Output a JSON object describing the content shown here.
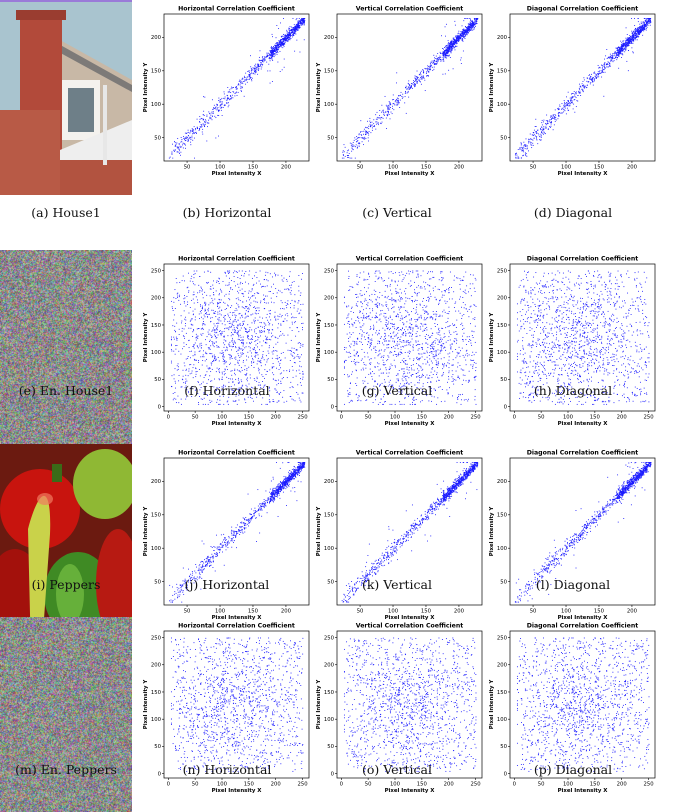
{
  "rows": [
    {
      "image": {
        "name": "house1",
        "kind": "house",
        "caption": "(a) House1"
      },
      "plots": [
        {
          "caption": "(b) Horizontal",
          "mode": "corr",
          "seed": 11,
          "chart": 0
        },
        {
          "caption": "(c) Vertical",
          "mode": "corr",
          "seed": 12,
          "chart": 1
        },
        {
          "caption": "(d) Diagonal",
          "mode": "corr",
          "seed": 13,
          "chart": 2
        }
      ]
    },
    {
      "image": {
        "name": "encrypted-house1",
        "kind": "noise",
        "caption": "(e) En. House1"
      },
      "plots": [
        {
          "caption": "(f) Horizontal",
          "mode": "rand",
          "seed": 21,
          "chart": 3
        },
        {
          "caption": "(g) Vertical",
          "mode": "rand",
          "seed": 22,
          "chart": 4
        },
        {
          "caption": "(h) Diagonal",
          "mode": "rand",
          "seed": 23,
          "chart": 5
        }
      ]
    },
    {
      "image": {
        "name": "peppers",
        "kind": "peppers",
        "caption": "(i) Peppers"
      },
      "plots": [
        {
          "caption": "(j) Horizontal",
          "mode": "corr",
          "seed": 31,
          "chart": 6
        },
        {
          "caption": "(k) Vertical",
          "mode": "corr",
          "seed": 32,
          "chart": 7
        },
        {
          "caption": "(l) Diagonal",
          "mode": "corr",
          "seed": 33,
          "chart": 8
        }
      ]
    },
    {
      "image": {
        "name": "encrypted-peppers",
        "kind": "noise",
        "caption": "(m) En. Peppers"
      },
      "plots": [
        {
          "caption": "(n) Horizontal",
          "mode": "rand",
          "seed": 41,
          "chart": 9
        },
        {
          "caption": "(o) Vertical",
          "mode": "rand",
          "seed": 42,
          "chart": 10
        },
        {
          "caption": "(p) Diagonal",
          "mode": "rand",
          "seed": 43,
          "chart": 11
        }
      ]
    }
  ],
  "chart_data": [
    {
      "type": "scatter",
      "title": "Horizontal Correlation Coefficient",
      "xlabel": "Pixel Intensity X",
      "ylabel": "Pixel Intensity Y",
      "xlim": [
        15,
        235
      ],
      "ylim": [
        15,
        235
      ],
      "xticks": [
        50,
        100,
        150,
        200
      ],
      "yticks": [
        50,
        100,
        150,
        200
      ],
      "point_color": "#1a1aff",
      "grid": false
    },
    {
      "type": "scatter",
      "title": "Vertical Correlation Coefficient",
      "xlabel": "Pixel Intensity X",
      "ylabel": "Pixel Intensity Y",
      "xlim": [
        15,
        235
      ],
      "ylim": [
        15,
        235
      ],
      "xticks": [
        50,
        100,
        150,
        200
      ],
      "yticks": [
        50,
        100,
        150,
        200
      ],
      "point_color": "#1a1aff",
      "grid": false
    },
    {
      "type": "scatter",
      "title": "Diagonal Correlation Coefficient",
      "xlabel": "Pixel Intensity X",
      "ylabel": "Pixel Intensity Y",
      "xlim": [
        15,
        235
      ],
      "ylim": [
        15,
        235
      ],
      "xticks": [
        50,
        100,
        150,
        200
      ],
      "yticks": [
        50,
        100,
        150,
        200
      ],
      "point_color": "#1a1aff",
      "grid": false
    },
    {
      "type": "scatter",
      "title": "Horizontal Correlation Coefficient",
      "xlabel": "Pixel Intensity X",
      "ylabel": "Pixel Intensity Y",
      "xlim": [
        -8,
        262
      ],
      "ylim": [
        -8,
        262
      ],
      "xticks": [
        0,
        50,
        100,
        150,
        200,
        250
      ],
      "yticks": [
        0,
        50,
        100,
        150,
        200,
        250
      ],
      "point_color": "#1a1aff",
      "grid": false
    },
    {
      "type": "scatter",
      "title": "Vertical Correlation Coefficient",
      "xlabel": "Pixel Intensity X",
      "ylabel": "Pixel Intensity Y",
      "xlim": [
        -8,
        262
      ],
      "ylim": [
        -8,
        262
      ],
      "xticks": [
        0,
        50,
        100,
        150,
        200,
        250
      ],
      "yticks": [
        0,
        50,
        100,
        150,
        200,
        250
      ],
      "point_color": "#1a1aff",
      "grid": false
    },
    {
      "type": "scatter",
      "title": "Diagonal Correlation Coefficient",
      "xlabel": "Pixel Intensity X",
      "ylabel": "Pixel Intensity Y",
      "xlim": [
        -8,
        262
      ],
      "ylim": [
        -8,
        262
      ],
      "xticks": [
        0,
        50,
        100,
        150,
        200,
        250
      ],
      "yticks": [
        0,
        50,
        100,
        150,
        200,
        250
      ],
      "point_color": "#1a1aff",
      "grid": false
    },
    {
      "type": "scatter",
      "title": "Horizontal Correlation Coefficient",
      "xlabel": "Pixel Intensity X",
      "ylabel": "Pixel Intensity Y",
      "xlim": [
        15,
        235
      ],
      "ylim": [
        15,
        235
      ],
      "xticks": [
        50,
        100,
        150,
        200
      ],
      "yticks": [
        50,
        100,
        150,
        200
      ],
      "point_color": "#1a1aff",
      "grid": false
    },
    {
      "type": "scatter",
      "title": "Vertical Correlation Coefficient",
      "xlabel": "Pixel Intensity X",
      "ylabel": "Pixel Intensity Y",
      "xlim": [
        15,
        235
      ],
      "ylim": [
        15,
        235
      ],
      "xticks": [
        50,
        100,
        150,
        200
      ],
      "yticks": [
        50,
        100,
        150,
        200
      ],
      "point_color": "#1a1aff",
      "grid": false
    },
    {
      "type": "scatter",
      "title": "Diagonal Correlation Coefficient",
      "xlabel": "Pixel Intensity X",
      "ylabel": "Pixel Intensity Y",
      "xlim": [
        15,
        235
      ],
      "ylim": [
        15,
        235
      ],
      "xticks": [
        50,
        100,
        150,
        200
      ],
      "yticks": [
        50,
        100,
        150,
        200
      ],
      "point_color": "#1a1aff",
      "grid": false
    },
    {
      "type": "scatter",
      "title": "Horizontal Correlation Coefficient",
      "xlabel": "Pixel Intensity X",
      "ylabel": "Pixel Intensity Y",
      "xlim": [
        -8,
        262
      ],
      "ylim": [
        -8,
        262
      ],
      "xticks": [
        0,
        50,
        100,
        150,
        200,
        250
      ],
      "yticks": [
        0,
        50,
        100,
        150,
        200,
        250
      ],
      "point_color": "#1a1aff",
      "grid": false
    },
    {
      "type": "scatter",
      "title": "Vertical Correlation Coefficient",
      "xlabel": "Pixel Intensity X",
      "ylabel": "Pixel Intensity Y",
      "xlim": [
        -8,
        262
      ],
      "ylim": [
        -8,
        262
      ],
      "xticks": [
        0,
        50,
        100,
        150,
        200,
        250
      ],
      "yticks": [
        0,
        50,
        100,
        150,
        200,
        250
      ],
      "point_color": "#1a1aff",
      "grid": false
    },
    {
      "type": "scatter",
      "title": "Diagonal Correlation Coefficient",
      "xlabel": "Pixel Intensity X",
      "ylabel": "Pixel Intensity Y",
      "xlim": [
        -8,
        262
      ],
      "ylim": [
        -8,
        262
      ],
      "xticks": [
        0,
        50,
        100,
        150,
        200,
        250
      ],
      "yticks": [
        0,
        50,
        100,
        150,
        200,
        250
      ],
      "point_color": "#1a1aff",
      "grid": false
    }
  ]
}
